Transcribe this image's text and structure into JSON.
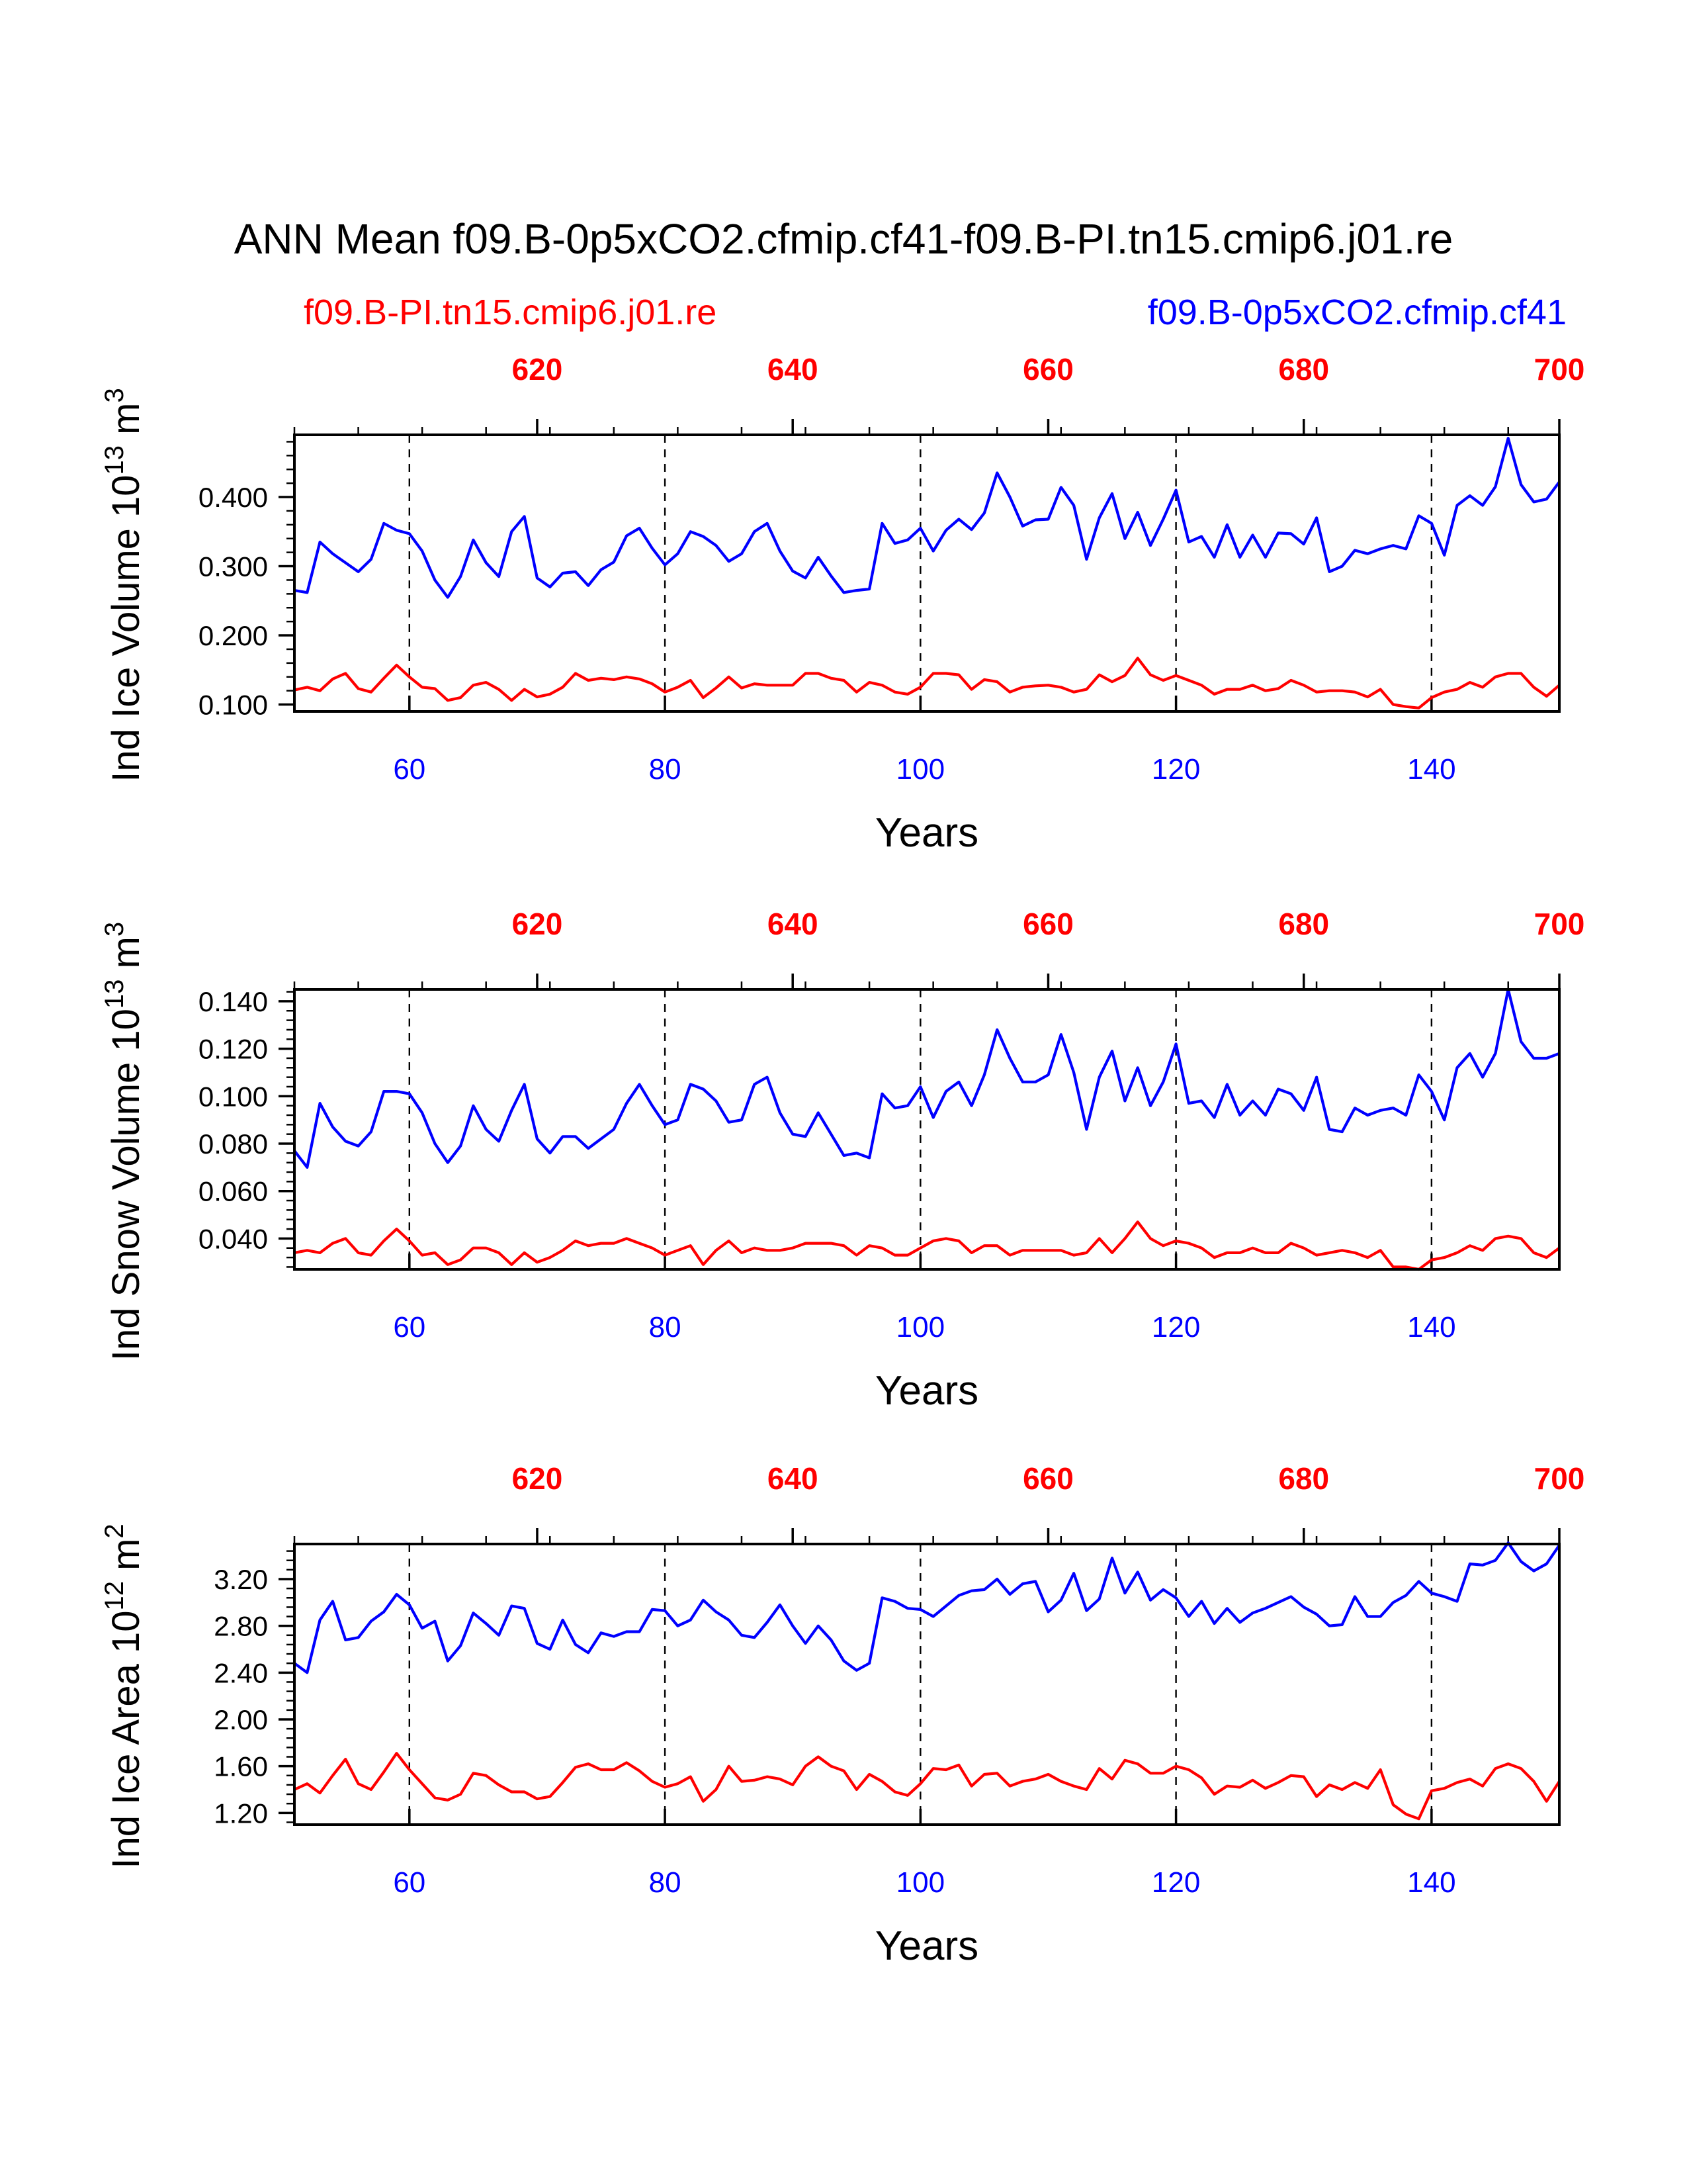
{
  "title": "ANN Mean f09.B-0p5xCO2.cfmip.cf41-f09.B-PI.tn15.cmip6.j01.re",
  "colors": {
    "control": "#ff0000",
    "experiment": "#0000ff"
  },
  "legend": {
    "control_label": "f09.B-PI.tn15.cmip6.j01.re",
    "experiment_label": "f09.B-0p5xCO2.cfmip.cf41"
  },
  "chart_data": [
    {
      "type": "line",
      "panel": "ice-volume",
      "ylabel": "Ind Ice Volume",
      "yunit": "10^13 m^3",
      "xlabel": "Years",
      "x_start": 51,
      "xlim": [
        51,
        150
      ],
      "ylim": [
        0.09,
        0.49
      ],
      "yticks": [
        "0.100",
        "0.200",
        "0.300",
        "0.400"
      ],
      "ytick_values": [
        0.1,
        0.2,
        0.3,
        0.4
      ],
      "xticks_bottom": [
        "60",
        "80",
        "100",
        "120",
        "140"
      ],
      "xticks_bottom_values": [
        60,
        80,
        100,
        120,
        140
      ],
      "xticks_top": [
        "620",
        "640",
        "660",
        "680",
        "700"
      ],
      "xticks_top_values": [
        70,
        90,
        110,
        130,
        150
      ],
      "gridlines_x": [
        60,
        80,
        100,
        120,
        140
      ],
      "series": [
        {
          "name": "f09.B-0p5xCO2.cfmip.cf41",
          "color": "#0000ff",
          "values": [
            0.265,
            0.262,
            0.335,
            0.318,
            0.305,
            0.292,
            0.31,
            0.362,
            0.352,
            0.347,
            0.322,
            0.28,
            0.255,
            0.285,
            0.338,
            0.305,
            0.285,
            0.35,
            0.372,
            0.283,
            0.27,
            0.29,
            0.292,
            0.272,
            0.295,
            0.306,
            0.344,
            0.355,
            0.326,
            0.302,
            0.318,
            0.35,
            0.343,
            0.33,
            0.307,
            0.318,
            0.35,
            0.362,
            0.322,
            0.293,
            0.283,
            0.313,
            0.286,
            0.262,
            0.265,
            0.267,
            0.362,
            0.333,
            0.338,
            0.355,
            0.322,
            0.352,
            0.368,
            0.353,
            0.377,
            0.435,
            0.4,
            0.358,
            0.367,
            0.368,
            0.414,
            0.388,
            0.31,
            0.37,
            0.405,
            0.34,
            0.378,
            0.33,
            0.368,
            0.41,
            0.335,
            0.343,
            0.313,
            0.36,
            0.313,
            0.345,
            0.313,
            0.348,
            0.347,
            0.332,
            0.37,
            0.292,
            0.3,
            0.323,
            0.318,
            0.325,
            0.33,
            0.325,
            0.373,
            0.362,
            0.316,
            0.388,
            0.402,
            0.388,
            0.415,
            0.485,
            0.418,
            0.393,
            0.397,
            0.422
          ]
        },
        {
          "name": "f09.B-PI.tn15.cmip6.j01.re",
          "color": "#ff0000",
          "values": [
            0.121,
            0.125,
            0.12,
            0.137,
            0.145,
            0.123,
            0.118,
            0.138,
            0.157,
            0.14,
            0.125,
            0.123,
            0.106,
            0.11,
            0.128,
            0.132,
            0.122,
            0.106,
            0.122,
            0.111,
            0.115,
            0.125,
            0.145,
            0.135,
            0.138,
            0.136,
            0.14,
            0.137,
            0.13,
            0.118,
            0.125,
            0.135,
            0.11,
            0.124,
            0.14,
            0.124,
            0.13,
            0.128,
            0.128,
            0.128,
            0.145,
            0.145,
            0.138,
            0.135,
            0.118,
            0.132,
            0.128,
            0.118,
            0.115,
            0.125,
            0.145,
            0.145,
            0.143,
            0.122,
            0.136,
            0.133,
            0.118,
            0.125,
            0.127,
            0.128,
            0.125,
            0.118,
            0.122,
            0.143,
            0.133,
            0.142,
            0.167,
            0.143,
            0.135,
            0.142,
            0.135,
            0.128,
            0.115,
            0.122,
            0.122,
            0.128,
            0.12,
            0.123,
            0.135,
            0.128,
            0.118,
            0.12,
            0.12,
            0.118,
            0.111,
            0.122,
            0.1,
            0.097,
            0.095,
            0.11,
            0.118,
            0.122,
            0.132,
            0.125,
            0.14,
            0.145,
            0.145,
            0.125,
            0.112,
            0.128
          ]
        }
      ]
    },
    {
      "type": "line",
      "panel": "snow-volume",
      "ylabel": "Ind Snow Volume",
      "yunit": "10^13 m^3",
      "xlabel": "Years",
      "x_start": 51,
      "xlim": [
        51,
        150
      ],
      "ylim": [
        0.027,
        0.145
      ],
      "yticks": [
        "0.040",
        "0.060",
        "0.080",
        "0.100",
        "0.120",
        "0.140"
      ],
      "ytick_values": [
        0.04,
        0.06,
        0.08,
        0.1,
        0.12,
        0.14
      ],
      "xticks_bottom": [
        "60",
        "80",
        "100",
        "120",
        "140"
      ],
      "xticks_bottom_values": [
        60,
        80,
        100,
        120,
        140
      ],
      "xticks_top": [
        "620",
        "640",
        "660",
        "680",
        "700"
      ],
      "xticks_top_values": [
        70,
        90,
        110,
        130,
        150
      ],
      "gridlines_x": [
        60,
        80,
        100,
        120,
        140
      ],
      "series": [
        {
          "name": "f09.B-0p5xCO2.cfmip.cf41",
          "color": "#0000ff",
          "values": [
            0.077,
            0.07,
            0.097,
            0.087,
            0.081,
            0.079,
            0.085,
            0.102,
            0.102,
            0.101,
            0.093,
            0.08,
            0.072,
            0.079,
            0.096,
            0.086,
            0.081,
            0.094,
            0.105,
            0.082,
            0.076,
            0.083,
            0.083,
            0.078,
            0.082,
            0.086,
            0.097,
            0.105,
            0.096,
            0.088,
            0.09,
            0.105,
            0.103,
            0.098,
            0.089,
            0.09,
            0.105,
            0.108,
            0.093,
            0.084,
            0.083,
            0.093,
            0.084,
            0.075,
            0.076,
            0.074,
            0.101,
            0.095,
            0.096,
            0.104,
            0.091,
            0.102,
            0.106,
            0.096,
            0.109,
            0.128,
            0.116,
            0.106,
            0.106,
            0.109,
            0.126,
            0.11,
            0.086,
            0.108,
            0.119,
            0.098,
            0.112,
            0.096,
            0.106,
            0.122,
            0.097,
            0.098,
            0.091,
            0.105,
            0.092,
            0.098,
            0.092,
            0.103,
            0.101,
            0.094,
            0.108,
            0.086,
            0.085,
            0.095,
            0.092,
            0.094,
            0.095,
            0.092,
            0.109,
            0.102,
            0.09,
            0.112,
            0.118,
            0.108,
            0.118,
            0.145,
            0.123,
            0.116,
            0.116,
            0.118
          ]
        },
        {
          "name": "f09.B-PI.tn15.cmip6.j01.re",
          "color": "#ff0000",
          "values": [
            0.034,
            0.035,
            0.034,
            0.038,
            0.04,
            0.034,
            0.033,
            0.039,
            0.044,
            0.039,
            0.033,
            0.034,
            0.029,
            0.031,
            0.036,
            0.036,
            0.034,
            0.029,
            0.034,
            0.03,
            0.032,
            0.035,
            0.039,
            0.037,
            0.038,
            0.038,
            0.04,
            0.038,
            0.036,
            0.033,
            0.035,
            0.037,
            0.029,
            0.035,
            0.039,
            0.034,
            0.036,
            0.035,
            0.035,
            0.036,
            0.038,
            0.038,
            0.038,
            0.037,
            0.033,
            0.037,
            0.036,
            0.033,
            0.033,
            0.036,
            0.039,
            0.04,
            0.039,
            0.034,
            0.037,
            0.037,
            0.033,
            0.035,
            0.035,
            0.035,
            0.035,
            0.033,
            0.034,
            0.04,
            0.034,
            0.04,
            0.047,
            0.04,
            0.037,
            0.039,
            0.038,
            0.036,
            0.032,
            0.034,
            0.034,
            0.036,
            0.034,
            0.034,
            0.038,
            0.036,
            0.033,
            0.034,
            0.035,
            0.034,
            0.032,
            0.035,
            0.028,
            0.028,
            0.027,
            0.031,
            0.032,
            0.034,
            0.037,
            0.035,
            0.04,
            0.041,
            0.04,
            0.034,
            0.032,
            0.036
          ]
        }
      ]
    },
    {
      "type": "line",
      "panel": "ice-area",
      "ylabel": "Ind Ice Area",
      "yunit": "10^12 m^2",
      "xlabel": "Years",
      "x_start": 51,
      "xlim": [
        51,
        150
      ],
      "ylim": [
        1.1,
        3.5
      ],
      "yticks": [
        "1.20",
        "1.60",
        "2.00",
        "2.40",
        "2.80",
        "3.20"
      ],
      "ytick_values": [
        1.2,
        1.6,
        2.0,
        2.4,
        2.8,
        3.2
      ],
      "xticks_bottom": [
        "60",
        "80",
        "100",
        "120",
        "140"
      ],
      "xticks_bottom_values": [
        60,
        80,
        100,
        120,
        140
      ],
      "xticks_top": [
        "620",
        "640",
        "660",
        "680",
        "700"
      ],
      "xticks_top_values": [
        70,
        90,
        110,
        130,
        150
      ],
      "gridlines_x": [
        60,
        80,
        100,
        120,
        140
      ],
      "series": [
        {
          "name": "f09.B-0p5xCO2.cfmip.cf41",
          "color": "#0000ff",
          "values": [
            2.48,
            2.4,
            2.85,
            3.01,
            2.68,
            2.7,
            2.84,
            2.92,
            3.07,
            2.98,
            2.78,
            2.84,
            2.5,
            2.63,
            2.91,
            2.82,
            2.72,
            2.97,
            2.95,
            2.65,
            2.6,
            2.85,
            2.64,
            2.57,
            2.74,
            2.71,
            2.75,
            2.75,
            2.94,
            2.93,
            2.8,
            2.85,
            3.02,
            2.92,
            2.85,
            2.72,
            2.7,
            2.83,
            2.98,
            2.8,
            2.65,
            2.8,
            2.68,
            2.5,
            2.42,
            2.48,
            3.04,
            3.01,
            2.95,
            2.94,
            2.88,
            2.97,
            3.06,
            3.1,
            3.11,
            3.2,
            3.07,
            3.16,
            3.18,
            2.92,
            3.02,
            3.25,
            2.93,
            3.03,
            3.38,
            3.08,
            3.26,
            3.02,
            3.11,
            3.04,
            2.88,
            3.01,
            2.82,
            2.95,
            2.83,
            2.91,
            2.95,
            3.0,
            3.05,
            2.96,
            2.9,
            2.8,
            2.81,
            3.05,
            2.88,
            2.88,
            3.0,
            3.06,
            3.18,
            3.08,
            3.05,
            3.01,
            3.33,
            3.32,
            3.36,
            3.51,
            3.35,
            3.27,
            3.33,
            3.49
          ]
        },
        {
          "name": "f09.B-PI.tn15.cmip6.j01.re",
          "color": "#ff0000",
          "values": [
            1.4,
            1.45,
            1.37,
            1.52,
            1.66,
            1.45,
            1.4,
            1.55,
            1.71,
            1.57,
            1.45,
            1.33,
            1.31,
            1.36,
            1.54,
            1.52,
            1.44,
            1.38,
            1.38,
            1.32,
            1.34,
            1.46,
            1.59,
            1.62,
            1.57,
            1.57,
            1.63,
            1.56,
            1.47,
            1.42,
            1.45,
            1.51,
            1.3,
            1.4,
            1.6,
            1.47,
            1.48,
            1.51,
            1.49,
            1.44,
            1.6,
            1.68,
            1.6,
            1.56,
            1.4,
            1.53,
            1.47,
            1.38,
            1.35,
            1.45,
            1.58,
            1.57,
            1.61,
            1.43,
            1.53,
            1.54,
            1.43,
            1.47,
            1.49,
            1.53,
            1.47,
            1.43,
            1.4,
            1.58,
            1.49,
            1.65,
            1.62,
            1.54,
            1.54,
            1.6,
            1.57,
            1.5,
            1.36,
            1.43,
            1.42,
            1.48,
            1.41,
            1.46,
            1.52,
            1.51,
            1.34,
            1.44,
            1.4,
            1.46,
            1.41,
            1.57,
            1.27,
            1.19,
            1.15,
            1.39,
            1.41,
            1.46,
            1.49,
            1.43,
            1.58,
            1.62,
            1.58,
            1.47,
            1.3,
            1.47
          ]
        }
      ]
    }
  ]
}
